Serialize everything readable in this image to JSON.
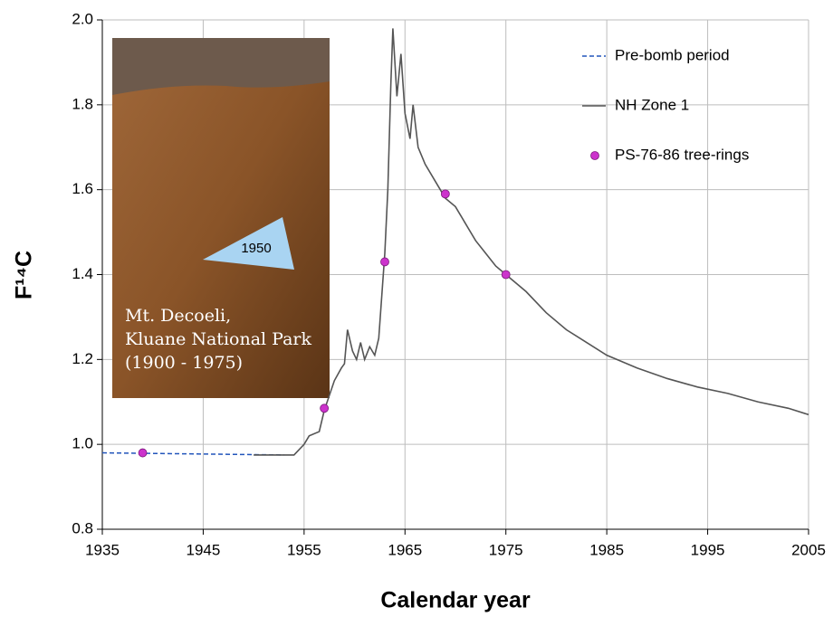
{
  "chart_data": {
    "type": "line",
    "x_label": "Calendar year",
    "y_label": "F¹⁴C",
    "xlim": [
      1935,
      2005
    ],
    "ylim": [
      0.8,
      2.0
    ],
    "xticks": [
      1935,
      1945,
      1955,
      1965,
      1975,
      1985,
      1995,
      2005
    ],
    "yticks": [
      0.8,
      {
        "value": 1,
        "label": "1.0"
      },
      1.2,
      1.4,
      1.6,
      1.8,
      {
        "value": 2,
        "label": "2.0"
      }
    ],
    "grid": true,
    "legend": "upper right",
    "series": [
      {
        "name": "Pre-bomb period",
        "color": "#2255bb",
        "style": "dashed",
        "x": [
          1935,
          1953
        ],
        "values": [
          0.98,
          0.975
        ]
      },
      {
        "name": "NH Zone 1",
        "color": "#555555",
        "style": "solid",
        "x": [
          1950,
          1954,
          1955,
          1955.5,
          1956.5,
          1957,
          1958,
          1958.7,
          1959,
          1959.3,
          1959.8,
          1960.2,
          1960.6,
          1961,
          1961.5,
          1962,
          1962.4,
          1962.7,
          1963,
          1963.3,
          1963.6,
          1963.8,
          1964.2,
          1964.6,
          1965,
          1965.5,
          1965.8,
          1966.3,
          1967,
          1968,
          1969,
          1970,
          1971,
          1972,
          1973,
          1974,
          1975,
          1977,
          1979,
          1981,
          1983,
          1985,
          1988,
          1991,
          1994,
          1997,
          2000,
          2003,
          2005
        ],
        "values": [
          0.975,
          0.975,
          1.0,
          1.02,
          1.03,
          1.08,
          1.15,
          1.18,
          1.19,
          1.27,
          1.22,
          1.2,
          1.24,
          1.2,
          1.23,
          1.21,
          1.25,
          1.35,
          1.45,
          1.6,
          1.85,
          1.98,
          1.82,
          1.92,
          1.78,
          1.72,
          1.8,
          1.7,
          1.66,
          1.62,
          1.58,
          1.56,
          1.52,
          1.48,
          1.45,
          1.42,
          1.4,
          1.36,
          1.31,
          1.27,
          1.24,
          1.21,
          1.18,
          1.155,
          1.135,
          1.12,
          1.1,
          1.085,
          1.07
        ]
      },
      {
        "name": "PS-76-86 tree-rings",
        "color": "#cc33cc",
        "style": "marker",
        "x": [
          1939,
          1957,
          1963,
          1969,
          1975
        ],
        "values": [
          0.98,
          1.085,
          1.43,
          1.59,
          1.4
        ]
      }
    ],
    "inset": {
      "lines": [
        "Mt. Decoeli,",
        "Kluane National Park",
        "(1900  -  1975)"
      ],
      "label": "1950"
    }
  }
}
